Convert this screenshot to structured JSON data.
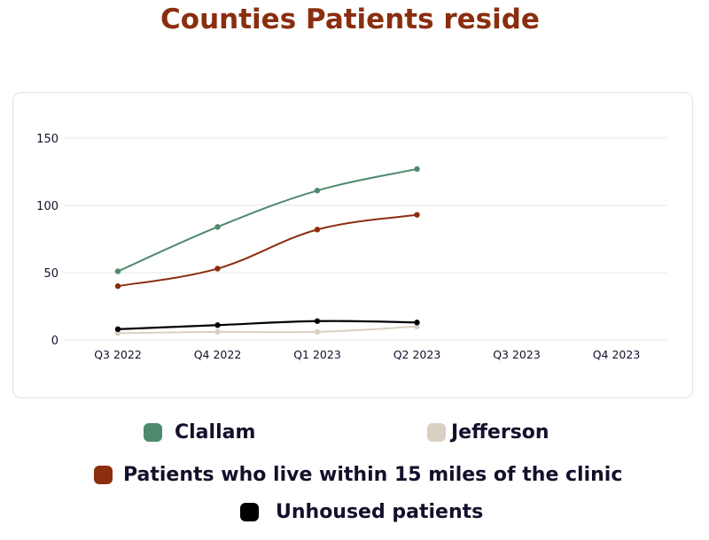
{
  "title": "Counties Patients reside",
  "chart_data": {
    "type": "line",
    "title": "Counties Patients reside",
    "xlabel": "",
    "ylabel": "",
    "categories": [
      "Q3 2022",
      "Q4 2022",
      "Q1 2023",
      "Q2 2023",
      "Q3 2023",
      "Q4 2023"
    ],
    "ylim": [
      0,
      150
    ],
    "yticks": [
      0,
      50,
      100,
      150
    ],
    "grid": true,
    "legend_position": "bottom",
    "series": [
      {
        "name": "Clallam",
        "color": "#4e8a6c",
        "values": [
          51,
          84,
          111,
          127,
          null,
          null
        ]
      },
      {
        "name": "Jefferson",
        "color": "#d9d0c1",
        "values": [
          5,
          6,
          6,
          10,
          null,
          null
        ]
      },
      {
        "name": "Patients who live within 15 miles of the clinic",
        "color": "#8a2e0f",
        "values": [
          40,
          53,
          82,
          93,
          null,
          null
        ]
      },
      {
        "name": "Unhoused patients",
        "color": "#000000",
        "values": [
          8,
          11,
          14,
          13,
          null,
          null
        ]
      }
    ]
  },
  "legend": [
    {
      "label": "Clallam",
      "color": "#4e8a6c"
    },
    {
      "label": "Jefferson",
      "color": "#d9d0c1"
    },
    {
      "label": "Patients who live within 15 miles of the clinic",
      "color": "#8a2e0f"
    },
    {
      "label": "Unhoused patients",
      "color": "#000000"
    }
  ]
}
